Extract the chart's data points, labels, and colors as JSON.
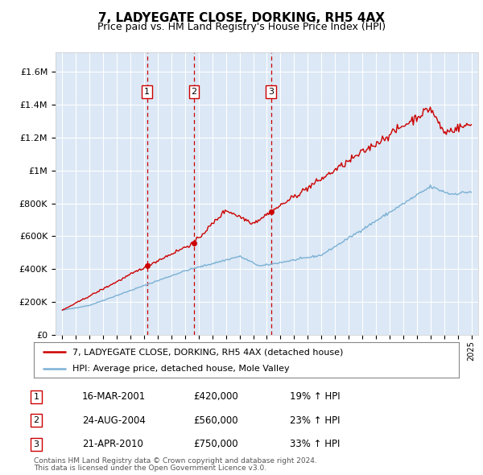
{
  "title": "7, LADYEGATE CLOSE, DORKING, RH5 4AX",
  "subtitle": "Price paid vs. HM Land Registry's House Price Index (HPI)",
  "title_fontsize": 11,
  "subtitle_fontsize": 9,
  "background_color": "#ffffff",
  "plot_bg_color": "#dce8f5",
  "grid_color": "#ffffff",
  "red_line_color": "#cc0000",
  "blue_line_color": "#7ab0d4",
  "ylabel_ticks": [
    "£0",
    "£200K",
    "£400K",
    "£600K",
    "£800K",
    "£1M",
    "£1.2M",
    "£1.4M",
    "£1.6M"
  ],
  "ytick_values": [
    0,
    200000,
    400000,
    600000,
    800000,
    1000000,
    1200000,
    1400000,
    1600000
  ],
  "ylim": [
    0,
    1720000
  ],
  "xlim_start": 1994.5,
  "xlim_end": 2025.5,
  "sale_dates": [
    2001.21,
    2004.65,
    2010.31
  ],
  "sale_prices": [
    420000,
    560000,
    750000
  ],
  "sale_labels": [
    "1",
    "2",
    "3"
  ],
  "sale_date_strings": [
    "16-MAR-2001",
    "24-AUG-2004",
    "21-APR-2010"
  ],
  "sale_price_strings": [
    "£420,000",
    "£560,000",
    "£750,000"
  ],
  "sale_hpi_strings": [
    "19% ↑ HPI",
    "23% ↑ HPI",
    "33% ↑ HPI"
  ],
  "legend_line1": "7, LADYEGATE CLOSE, DORKING, RH5 4AX (detached house)",
  "legend_line2": "HPI: Average price, detached house, Mole Valley",
  "footer1": "Contains HM Land Registry data © Crown copyright and database right 2024.",
  "footer2": "This data is licensed under the Open Government Licence v3.0."
}
